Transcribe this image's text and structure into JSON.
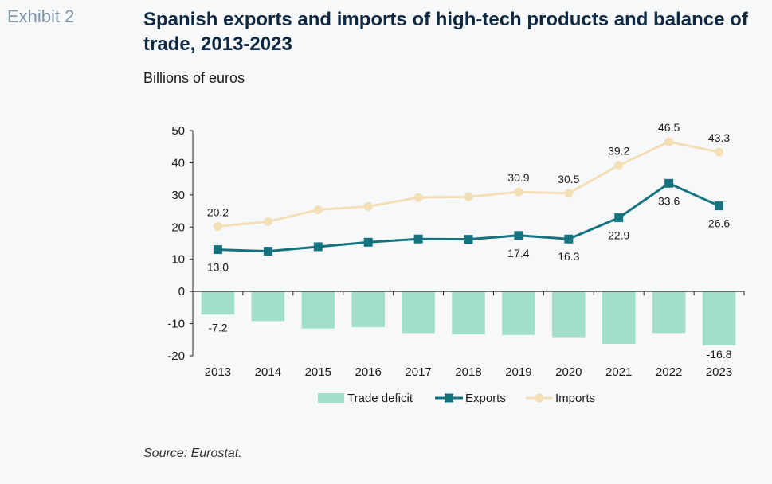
{
  "header": {
    "exhibit": "Exhibit 2",
    "title": "Spanish exports and imports of high-tech products and balance of trade, 2013-2023",
    "subtitle": "Billions of euros"
  },
  "footer": {
    "source": "Source: Eurostat."
  },
  "colors": {
    "deficit": "#a1dfc8",
    "exports": "#15737f",
    "imports": "#f3dfb6",
    "axis": "#222222"
  },
  "chart_data": {
    "type": "bar+line",
    "categories": [
      "2013",
      "2014",
      "2015",
      "2016",
      "2017",
      "2018",
      "2019",
      "2020",
      "2021",
      "2022",
      "2023"
    ],
    "ylim": [
      -20,
      50
    ],
    "yticks": [
      -20,
      -10,
      0,
      10,
      20,
      30,
      40,
      50
    ],
    "grid": false,
    "legend_position": "bottom",
    "series": [
      {
        "name": "Trade deficit",
        "type": "bar",
        "values": [
          -7.2,
          -9.2,
          -11.5,
          -11.1,
          -12.9,
          -13.3,
          -13.5,
          -14.2,
          -16.3,
          -12.9,
          -16.8
        ],
        "labels": {
          "0": "-7.2",
          "10": "-16.8"
        }
      },
      {
        "name": "Exports",
        "type": "line",
        "marker": "square",
        "values": [
          13.0,
          12.5,
          13.9,
          15.3,
          16.3,
          16.2,
          17.4,
          16.3,
          22.9,
          33.6,
          26.6
        ],
        "labels": {
          "0": "13.0",
          "6": "17.4",
          "7": "16.3",
          "8": "22.9",
          "9": "33.6",
          "10": "26.6"
        }
      },
      {
        "name": "Imports",
        "type": "line",
        "marker": "circle",
        "values": [
          20.2,
          21.7,
          25.4,
          26.4,
          29.2,
          29.4,
          30.9,
          30.5,
          39.2,
          46.5,
          43.3
        ],
        "labels": {
          "0": "20.2",
          "6": "30.9",
          "7": "30.5",
          "8": "39.2",
          "9": "46.5",
          "10": "43.3"
        }
      }
    ]
  }
}
